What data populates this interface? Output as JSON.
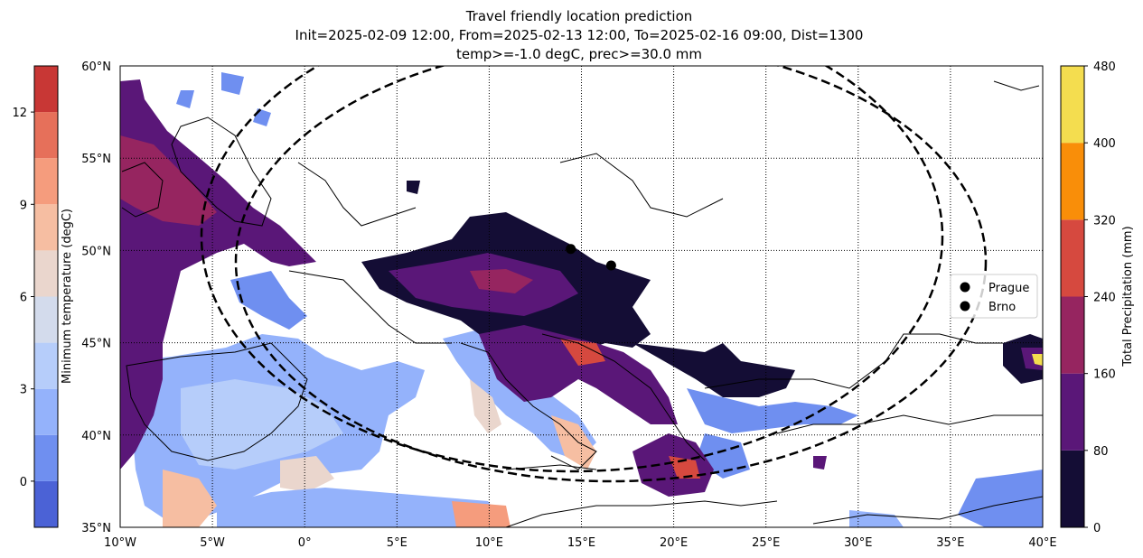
{
  "title": {
    "line1": "Travel friendly location prediction",
    "line2": "Init=2025-02-09 12:00, From=2025-02-13 12:00, To=2025-02-16 09:00, Dist=1300",
    "line3": "temp>=-1.0 degC, prec>=30.0 mm"
  },
  "map": {
    "lon_range": [
      -10,
      40
    ],
    "lat_range": [
      35,
      60
    ],
    "lon_ticks": [
      {
        "value": -10,
        "label": "10°W"
      },
      {
        "value": -5,
        "label": "5°W"
      },
      {
        "value": 0,
        "label": "0°"
      },
      {
        "value": 5,
        "label": "5°E"
      },
      {
        "value": 10,
        "label": "10°E"
      },
      {
        "value": 15,
        "label": "15°E"
      },
      {
        "value": 20,
        "label": "20°E"
      },
      {
        "value": 25,
        "label": "25°E"
      },
      {
        "value": 30,
        "label": "30°E"
      },
      {
        "value": 35,
        "label": "35°E"
      },
      {
        "value": 40,
        "label": "40°E"
      }
    ],
    "lat_ticks": [
      {
        "value": 35,
        "label": "35°N"
      },
      {
        "value": 40,
        "label": "40°N"
      },
      {
        "value": 45,
        "label": "45°N"
      },
      {
        "value": 50,
        "label": "50°N"
      },
      {
        "value": 55,
        "label": "55°N"
      },
      {
        "value": 60,
        "label": "60°N"
      }
    ],
    "gridlines": true,
    "cities": [
      {
        "name": "Prague",
        "lon": 14.42,
        "lat": 50.08
      },
      {
        "name": "Brno",
        "lon": 16.61,
        "lat": 49.19
      }
    ],
    "legend_placement": "right",
    "distance_circles": [
      {
        "center": "Prague",
        "radius_km": 1300
      },
      {
        "center": "Brno",
        "radius_km": 1300
      }
    ]
  },
  "temp_colorbar": {
    "label": "Minimum temperature (degC)",
    "ticks": [
      "0",
      "3",
      "6",
      "9",
      "12"
    ],
    "tick_values": [
      0,
      3,
      6,
      9,
      12
    ],
    "range": [
      -1.5,
      13.5
    ],
    "levels": [
      -1.5,
      0,
      1.5,
      3,
      4.5,
      6,
      7.5,
      9,
      10.5,
      12,
      13.5
    ],
    "colors": [
      "#4b62d6",
      "#6f8ff0",
      "#94b2fb",
      "#b6cdfa",
      "#d3dbec",
      "#ead6cd",
      "#f6bea2",
      "#f59c7d",
      "#e6705a",
      "#c83735"
    ]
  },
  "prec_colorbar": {
    "label": "Total Precipitation (mm)",
    "ticks": [
      "0",
      "80",
      "160",
      "240",
      "320",
      "400",
      "480"
    ],
    "tick_values": [
      0,
      80,
      160,
      240,
      320,
      400,
      480
    ],
    "range": [
      0,
      480
    ],
    "colors": [
      "#140d35",
      "#5a1778",
      "#962560",
      "#d6493f",
      "#f98e09",
      "#f4dd4f"
    ]
  }
}
